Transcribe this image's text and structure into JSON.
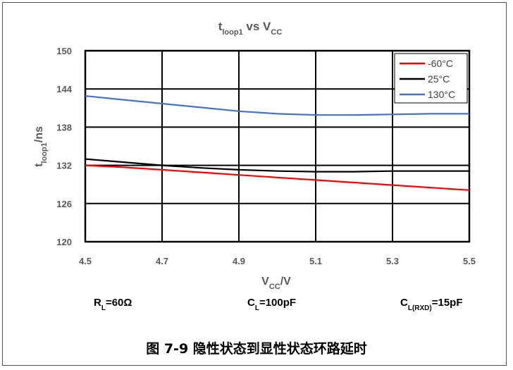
{
  "chart_data": {
    "type": "line",
    "title": {
      "main": "t",
      "sub": "loop1",
      "mid": " vs V",
      "sub2": "CC"
    },
    "xlabel": {
      "main": "V",
      "sub": "CC",
      "rest": "/V"
    },
    "ylabel": {
      "main": "t",
      "sub": "loop1",
      "rest": "/ns"
    },
    "xlim": [
      4.5,
      5.5
    ],
    "ylim": [
      120,
      150
    ],
    "xticks": [
      "4.5",
      "4.7",
      "4.9",
      "5.1",
      "5.3",
      "5.5"
    ],
    "yticks": [
      "120",
      "126",
      "132",
      "138",
      "144",
      "150"
    ],
    "grid": true,
    "legend_position": "top-right",
    "series": [
      {
        "name": "-60°C",
        "color": "#ff0000",
        "x": [
          4.5,
          4.6,
          4.7,
          4.8,
          4.9,
          5.0,
          5.1,
          5.2,
          5.3,
          5.4,
          5.5
        ],
        "y": [
          132.0,
          131.7,
          131.3,
          130.9,
          130.5,
          130.1,
          129.7,
          129.3,
          128.9,
          128.5,
          128.1
        ]
      },
      {
        "name": "25°C",
        "color": "#000000",
        "x": [
          4.5,
          4.6,
          4.7,
          4.8,
          4.9,
          5.0,
          5.1,
          5.2,
          5.3,
          5.4,
          5.5
        ],
        "y": [
          133.0,
          132.5,
          132.0,
          131.6,
          131.3,
          131.1,
          131.0,
          131.0,
          131.1,
          131.1,
          131.1
        ]
      },
      {
        "name": "130°C",
        "color": "#4472c4",
        "x": [
          4.5,
          4.6,
          4.7,
          4.8,
          4.9,
          5.0,
          5.1,
          5.2,
          5.3,
          5.4,
          5.5
        ],
        "y": [
          142.9,
          142.3,
          141.7,
          141.1,
          140.5,
          140.1,
          139.9,
          139.9,
          140.0,
          140.1,
          140.1
        ]
      }
    ]
  },
  "conditions": [
    {
      "main": "R",
      "sub": "L",
      "rest": "=60Ω"
    },
    {
      "main": "C",
      "sub": "L",
      "rest": "=100pF"
    },
    {
      "main": "C",
      "sub": "L(RXD)",
      "rest": "=15pF"
    }
  ],
  "caption": "图 7-9 隐性状态到显性状态环路延时"
}
